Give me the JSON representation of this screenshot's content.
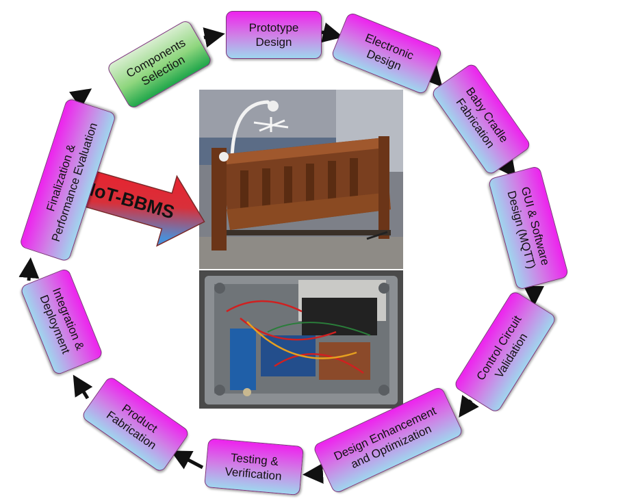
{
  "center_label": "IoT-BBMS",
  "steps": [
    {
      "key": "components",
      "lines": [
        "Components",
        "Selection"
      ],
      "style": "green"
    },
    {
      "key": "prototype",
      "lines": [
        "Prototype",
        "Design"
      ],
      "style": "magenta"
    },
    {
      "key": "electronic",
      "lines": [
        "Electronic",
        "Design"
      ],
      "style": "magenta"
    },
    {
      "key": "cradle",
      "lines": [
        "Baby Cradle",
        "Fabrication"
      ],
      "style": "magenta"
    },
    {
      "key": "gui",
      "lines": [
        "GUI & Software",
        "Design (MQTT)"
      ],
      "style": "magenta"
    },
    {
      "key": "control",
      "lines": [
        "Control Circuit",
        "Validation"
      ],
      "style": "magenta"
    },
    {
      "key": "enhance",
      "lines": [
        "Design Enhancement",
        "and Optimization"
      ],
      "style": "magenta"
    },
    {
      "key": "testing",
      "lines": [
        "Testing &",
        "Verification"
      ],
      "style": "magenta"
    },
    {
      "key": "product",
      "lines": [
        "Product",
        "Fabrication"
      ],
      "style": "magenta"
    },
    {
      "key": "integration",
      "lines": [
        "Integration &",
        "Deployment"
      ],
      "style": "magenta"
    },
    {
      "key": "final",
      "lines": [
        "Finalization &",
        "Performance Evaluation"
      ],
      "style": "magenta"
    }
  ],
  "colors": {
    "magenta": "#ee22ee",
    "cyan": "#9fd6ee",
    "green": "#1fa64a",
    "arrow_red": "#e8202a",
    "arrow_blue": "#4a8fd8"
  }
}
